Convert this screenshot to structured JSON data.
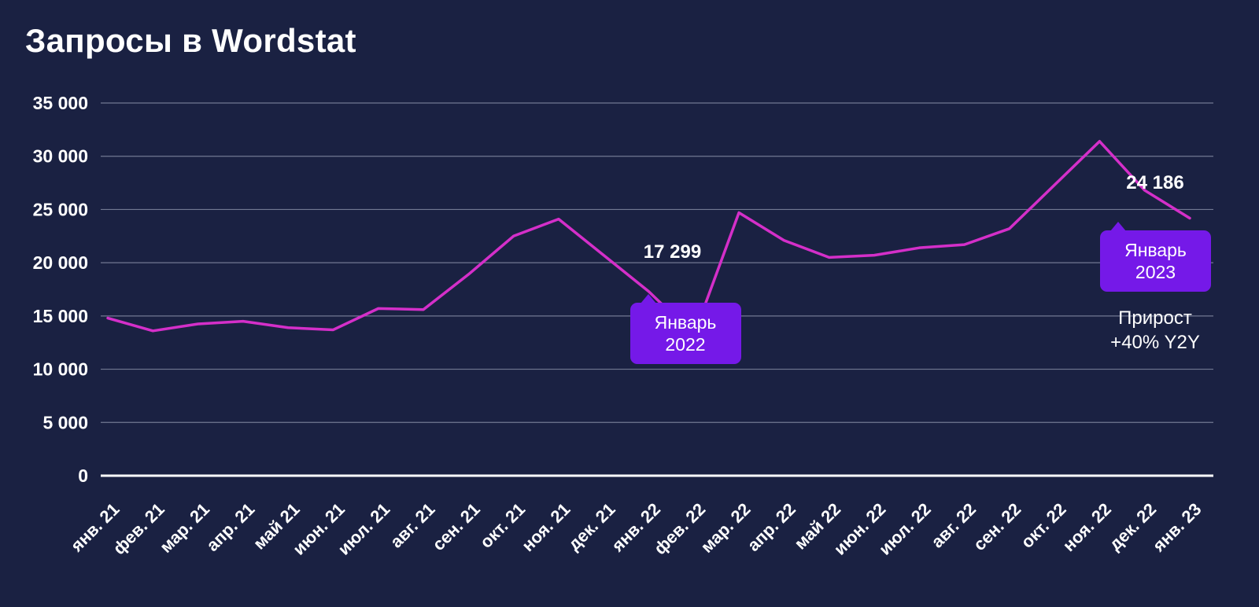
{
  "chart_data": {
    "type": "line",
    "title": "Запросы в Wordstat",
    "categories": [
      "янв. 21",
      "фев. 21",
      "мар. 21",
      "апр. 21",
      "май 21",
      "июн. 21",
      "июл. 21",
      "авг. 21",
      "сен. 21",
      "окт. 21",
      "ноя. 21",
      "дек. 21",
      "янв. 22",
      "фев. 22",
      "мар. 22",
      "апр. 22",
      "май 22",
      "июн. 22",
      "июл. 22",
      "авг. 22",
      "сен. 22",
      "окт. 22",
      "ноя. 22",
      "дек. 22",
      "янв. 23"
    ],
    "values": [
      14800,
      13600,
      14250,
      14500,
      13900,
      13700,
      15700,
      15600,
      18900,
      22500,
      24100,
      20700,
      17299,
      13200,
      24700,
      22100,
      20500,
      20700,
      21400,
      21700,
      23200,
      27300,
      31400,
      26800,
      24186
    ],
    "xlabel": "",
    "ylabel": "",
    "ylim": [
      0,
      35000
    ],
    "ytick_step": 5000,
    "ytick_labels": [
      "0",
      "5 000",
      "10 000",
      "15 000",
      "20 000",
      "25 000",
      "30 000",
      "35 000"
    ],
    "grid": "horizontal",
    "legend": "none"
  },
  "annotations": [
    {
      "id": "jan2022",
      "index": 12,
      "value_label": "17 299",
      "tooltip_line1": "Январь",
      "tooltip_line2": "2022"
    },
    {
      "id": "jan2023",
      "index": 24,
      "value_label": "24 186",
      "tooltip_line1": "Январь",
      "tooltip_line2": "2023",
      "note_line1": "Прирост",
      "note_line2": "+40% Y2Y"
    }
  ],
  "colors": {
    "background": "#1a2142",
    "line": "#d42fc9",
    "accent": "#7519e8",
    "text": "#ffffff",
    "grid": "#8f95ad",
    "axis": "#ffffff"
  }
}
